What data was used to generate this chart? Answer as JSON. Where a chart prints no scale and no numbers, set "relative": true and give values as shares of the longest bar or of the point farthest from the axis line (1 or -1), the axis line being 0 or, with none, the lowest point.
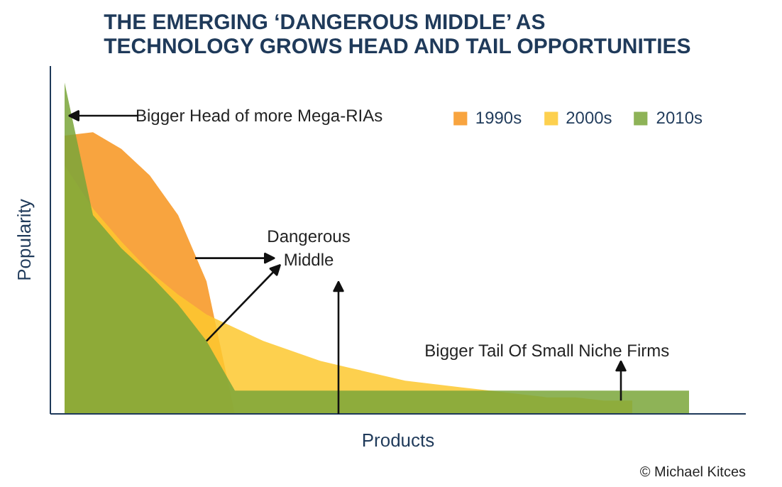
{
  "chart_data": {
    "type": "area",
    "relative": true,
    "title": "THE EMERGING ‘DANGEROUS MIDDLE’ AS TECHNOLOGY GROWS HEAD AND TAIL OPPORTUNITIES",
    "xlabel": "Products",
    "ylabel": "Popularity",
    "categories": [
      null,
      null,
      null,
      null,
      null,
      null,
      null,
      null,
      null,
      null,
      null,
      null,
      null,
      null,
      null,
      null,
      null,
      null,
      null,
      null,
      null,
      null,
      null
    ],
    "series": [
      {
        "name": "1990s",
        "color": "#f7941d",
        "values": [
          0.84,
          0.85,
          0.8,
          0.72,
          0.6,
          0.4,
          0,
          0,
          0,
          0,
          0,
          0,
          0,
          0,
          0,
          0,
          0,
          0,
          0,
          0,
          0,
          0,
          0
        ]
      },
      {
        "name": "2000s",
        "color": "#fdc82f",
        "values": [
          0.75,
          0.62,
          0.52,
          0.43,
          0.36,
          0.3,
          0.26,
          0.22,
          0.19,
          0.16,
          0.14,
          0.12,
          0.1,
          0.09,
          0.08,
          0.07,
          0.06,
          0.05,
          0.05,
          0.04,
          0.04,
          null,
          null
        ]
      },
      {
        "name": "2010s",
        "color": "#7aa63a",
        "values": [
          1.0,
          0.6,
          0.5,
          0.42,
          0.33,
          0.22,
          0.07,
          0.07,
          0.07,
          0.07,
          0.07,
          0.07,
          0.07,
          0.07,
          0.07,
          0.07,
          0.07,
          0.07,
          0.07,
          0.07,
          0.07,
          0.07,
          0.07
        ]
      }
    ],
    "legend": "top right",
    "tick_labels": false,
    "annotations": [
      "Bigger Head of more Mega-RIAs",
      "Dangerous\nMiddle",
      "Bigger Tail Of Small Niche Firms",
      "© Michael Kitces"
    ]
  }
}
